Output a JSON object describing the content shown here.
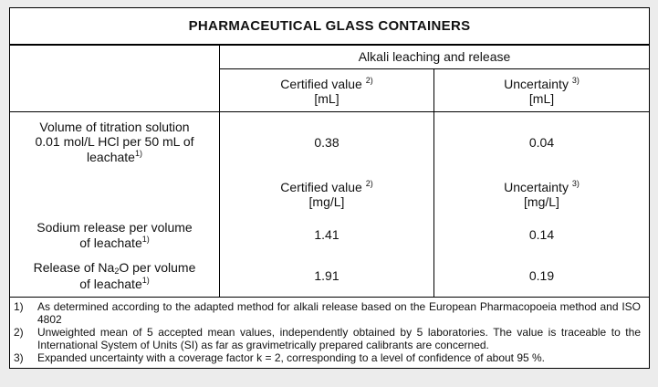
{
  "title": "PHARMACEUTICAL GLASS CONTAINERS",
  "group_header": "Alkali leaching and release",
  "header_ml": [
    {
      "text": "Certified value",
      "note": "2)",
      "unit": "[mL]"
    },
    {
      "text": "Uncertainty",
      "note": "3)",
      "unit": "[mL]"
    }
  ],
  "header_mgl": [
    {
      "text": "Certified value",
      "note": "2)",
      "unit": "[mg/L]"
    },
    {
      "text": "Uncertainty",
      "note": "3)",
      "unit": "[mg/L]"
    }
  ],
  "rows": [
    {
      "label_lines": [
        "Volume of titration solution",
        "0.01 mol/L HCl per 50 mL of",
        "leachate"
      ],
      "note": "1)",
      "values": [
        "0.38",
        "0.04"
      ]
    },
    {
      "label_lines": [
        "Sodium release per volume",
        "of leachate"
      ],
      "note": "1)",
      "values": [
        "1.41",
        "0.14"
      ]
    },
    {
      "label_lines": [
        "Release of Na",
        "2",
        "O per volume",
        "of leachate"
      ],
      "note": "1)",
      "values": [
        "1.91",
        "0.19"
      ]
    }
  ],
  "footnotes": [
    {
      "number": "1)",
      "text": "As determined according to the adapted method for alkali release based on the European Pharmacopoeia method and ISO 4802"
    },
    {
      "number": "2)",
      "text": "Unweighted mean of 5 accepted mean values, independently obtained by 5 laboratories. The value is traceable to the International System of Units (SI) as far as gravimetrically prepared calibrants are concerned."
    },
    {
      "number": "3)",
      "text": "Expanded uncertainty with a coverage factor k = 2, corresponding to a level of confidence of about 95 %."
    }
  ]
}
